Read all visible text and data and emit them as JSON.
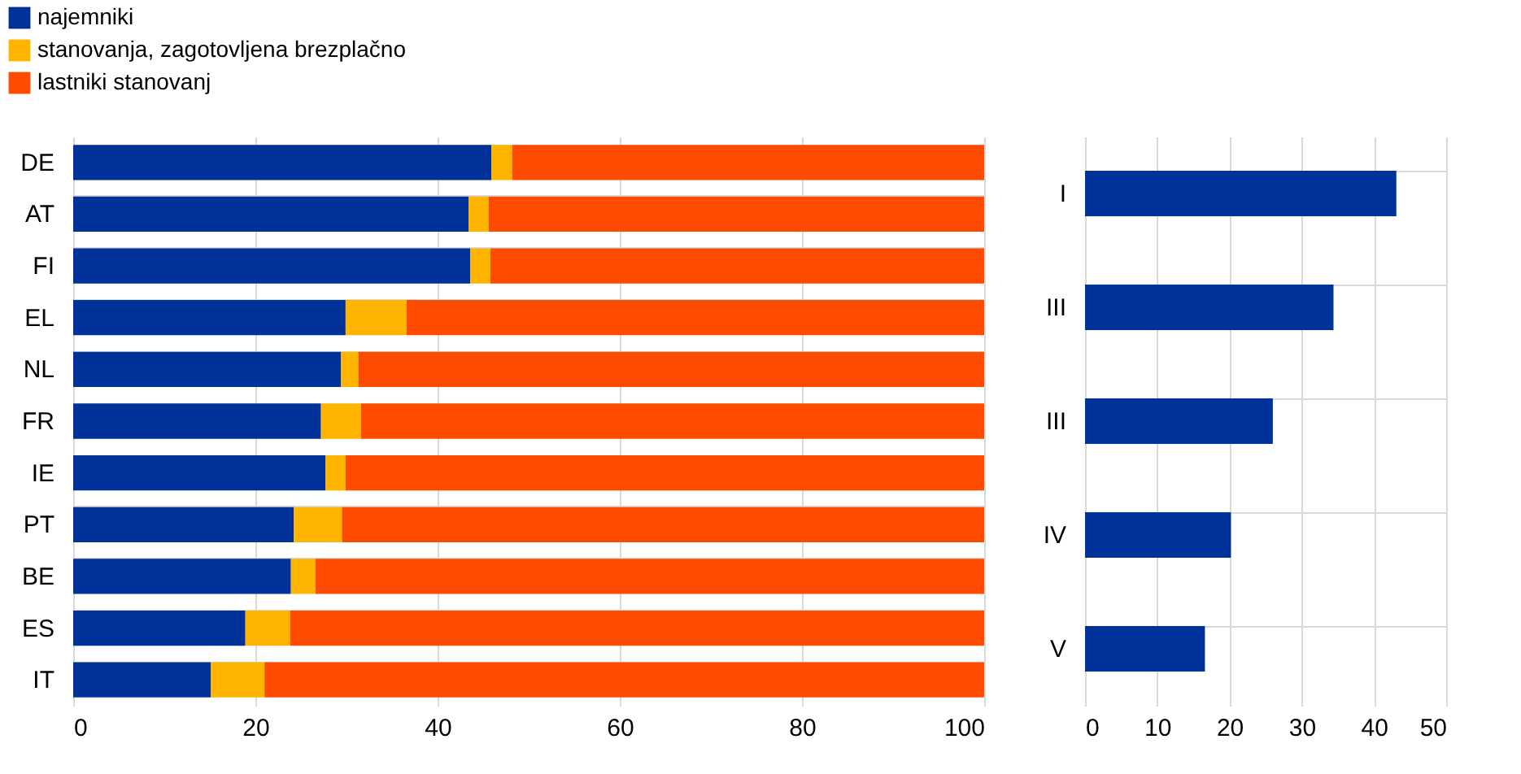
{
  "chart_data": [
    {
      "type": "bar",
      "orientation": "horizontal",
      "stacked": true,
      "categories": [
        "DE",
        "AT",
        "FI",
        "EL",
        "NL",
        "FR",
        "IE",
        "PT",
        "BE",
        "ES",
        "IT"
      ],
      "series": [
        {
          "name": "najemniki",
          "color": "#003299",
          "values": [
            45.9,
            43.4,
            43.6,
            29.9,
            29.4,
            27.2,
            27.7,
            24.2,
            23.9,
            18.9,
            15.1
          ]
        },
        {
          "name": "stanovanja, zagotovljena brezplačno",
          "color": "#ffb400",
          "values": [
            2.3,
            2.2,
            2.2,
            6.7,
            1.9,
            4.4,
            2.2,
            5.3,
            2.7,
            4.9,
            5.9
          ]
        },
        {
          "name": "lastniki stanovanj",
          "color": "#ff4b00",
          "values": [
            51.8,
            54.4,
            54.2,
            63.4,
            68.7,
            68.4,
            70.1,
            70.5,
            73.4,
            76.2,
            79.0
          ]
        }
      ],
      "xlim": [
        0,
        100
      ],
      "xticks": [
        0,
        20,
        40,
        60,
        80,
        100
      ],
      "grid": true,
      "legend": "top left"
    },
    {
      "type": "bar",
      "orientation": "horizontal",
      "categories": [
        "I",
        "III",
        "III",
        "IV",
        "V"
      ],
      "series": [
        {
          "color": "#003299",
          "values": [
            43.1,
            34.4,
            26.0,
            20.2,
            16.6
          ]
        }
      ],
      "xlim": [
        0,
        50
      ],
      "xticks": [
        0,
        10,
        20,
        30,
        40,
        50
      ],
      "grid": true
    }
  ]
}
